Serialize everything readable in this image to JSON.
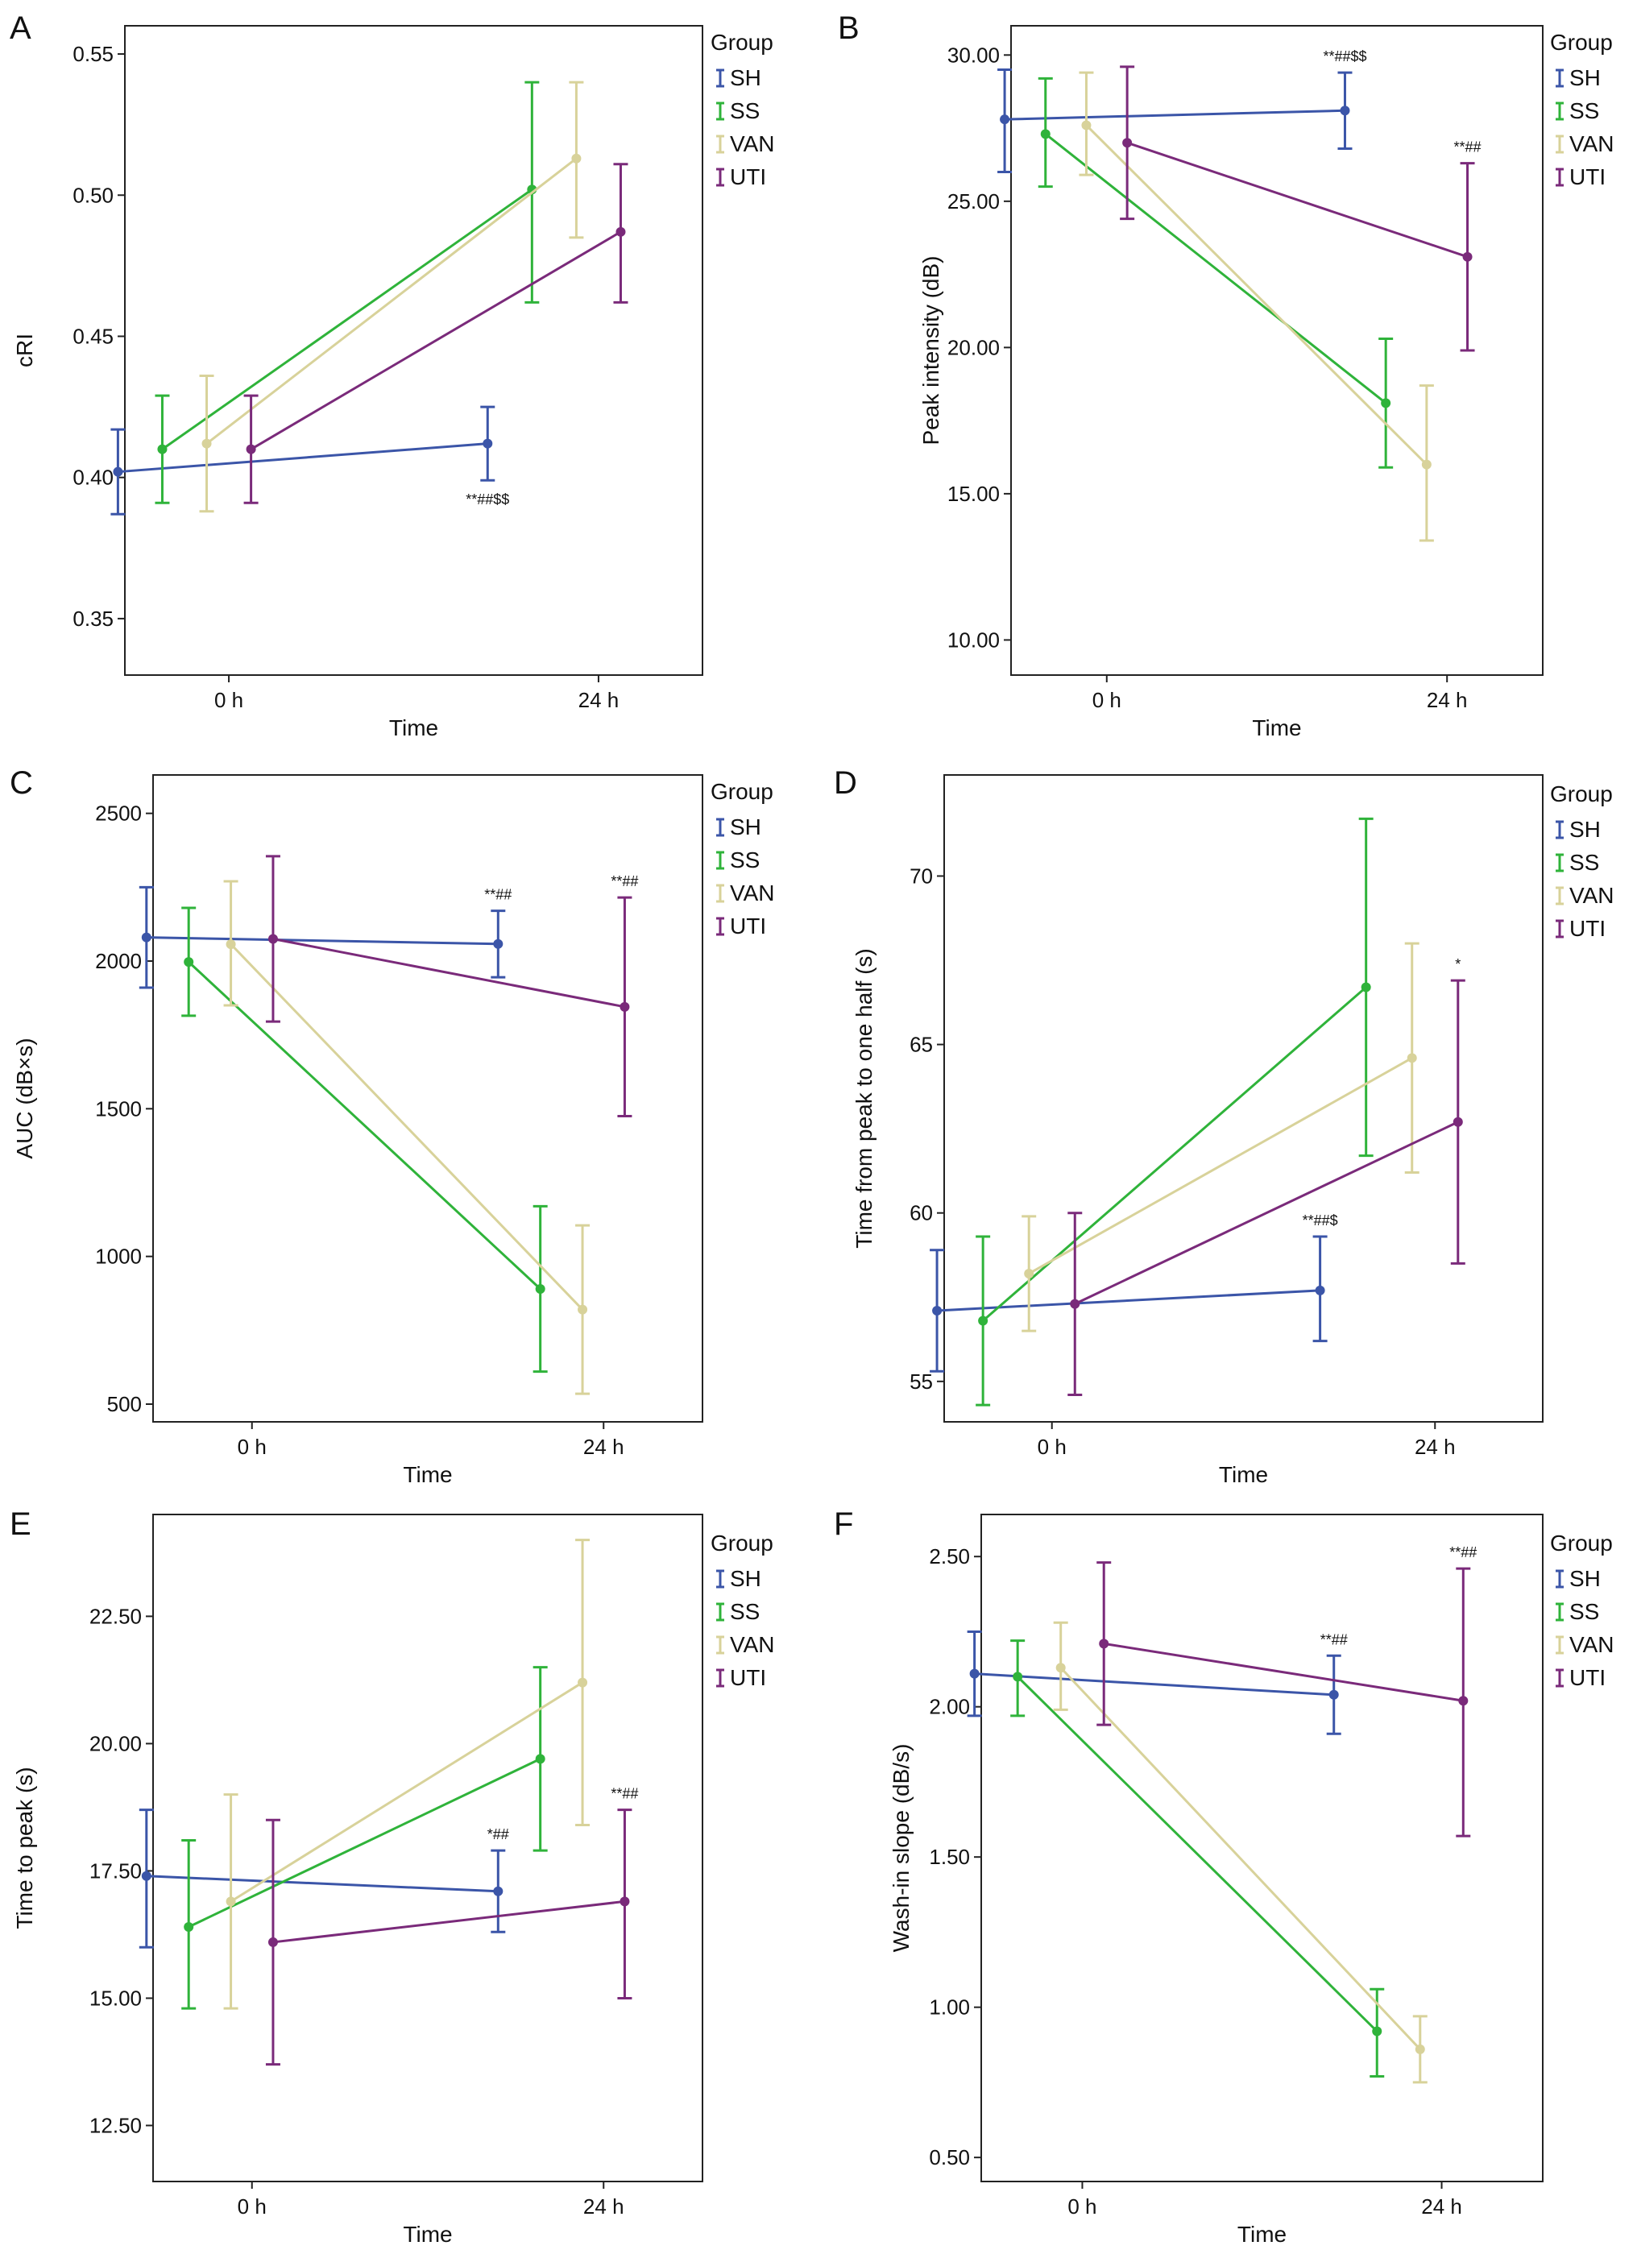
{
  "legend": {
    "title": "Group",
    "entries": [
      {
        "name": "SH",
        "color": "#3b55a8"
      },
      {
        "name": "SS",
        "color": "#2fb33a"
      },
      {
        "name": "VAN",
        "color": "#d8d29a"
      },
      {
        "name": "UTI",
        "color": "#7a2a7a"
      }
    ]
  },
  "chart_data": [
    {
      "id": "A",
      "letter": "A",
      "type": "line",
      "title": "",
      "xlabel": "Time",
      "ylabel": "cRI",
      "categories": [
        "0 h",
        "24 h"
      ],
      "ylim": [
        0.33,
        0.56
      ],
      "yticks": [
        0.35,
        0.4,
        0.45,
        0.5,
        0.55
      ],
      "yticklabels": [
        "0.35",
        "0.40",
        "0.45",
        "0.50",
        "0.55"
      ],
      "series": [
        {
          "name": "SH",
          "values": [
            0.402,
            0.412
          ],
          "lower": [
            0.387,
            0.399
          ],
          "upper": [
            0.417,
            0.425
          ]
        },
        {
          "name": "SS",
          "values": [
            0.41,
            0.502
          ],
          "lower": [
            0.391,
            0.462
          ],
          "upper": [
            0.429,
            0.54
          ]
        },
        {
          "name": "VAN",
          "values": [
            0.412,
            0.513
          ],
          "lower": [
            0.388,
            0.485
          ],
          "upper": [
            0.436,
            0.54
          ]
        },
        {
          "name": "UTI",
          "values": [
            0.41,
            0.487
          ],
          "lower": [
            0.391,
            0.462
          ],
          "upper": [
            0.429,
            0.511
          ]
        }
      ],
      "annotations": [
        {
          "series": "SH",
          "text": "**##$$",
          "position": "below"
        }
      ]
    },
    {
      "id": "B",
      "letter": "B",
      "type": "line",
      "title": "",
      "xlabel": "Time",
      "ylabel": "Peak intensity (dB)",
      "categories": [
        "0 h",
        "24 h"
      ],
      "ylim": [
        8.8,
        31.0
      ],
      "yticks": [
        10,
        15,
        20,
        25,
        30
      ],
      "yticklabels": [
        "10.00",
        "15.00",
        "20.00",
        "25.00",
        "30.00"
      ],
      "series": [
        {
          "name": "SH",
          "values": [
            27.8,
            28.1
          ],
          "lower": [
            26.0,
            26.8
          ],
          "upper": [
            29.5,
            29.4
          ]
        },
        {
          "name": "SS",
          "values": [
            27.3,
            18.1
          ],
          "lower": [
            25.5,
            15.9
          ],
          "upper": [
            29.2,
            20.3
          ]
        },
        {
          "name": "VAN",
          "values": [
            27.6,
            16.0
          ],
          "lower": [
            25.9,
            13.4
          ],
          "upper": [
            29.4,
            18.7
          ]
        },
        {
          "name": "UTI",
          "values": [
            27.0,
            23.1
          ],
          "lower": [
            24.4,
            19.9
          ],
          "upper": [
            29.6,
            26.3
          ]
        }
      ],
      "annotations": [
        {
          "series": "SH",
          "text": "**##$$",
          "position": "above"
        },
        {
          "series": "UTI",
          "text": "**##",
          "position": "above"
        }
      ]
    },
    {
      "id": "C",
      "letter": "C",
      "type": "line",
      "title": "",
      "xlabel": "Time",
      "ylabel": "AUC (dB×s)",
      "categories": [
        "0 h",
        "24 h"
      ],
      "ylim": [
        440,
        2630
      ],
      "yticks": [
        500,
        1000,
        1500,
        2000,
        2500
      ],
      "yticklabels": [
        "500",
        "1000",
        "1500",
        "2000",
        "2500"
      ],
      "series": [
        {
          "name": "SH",
          "values": [
            2080,
            2058
          ],
          "lower": [
            1910,
            1945
          ],
          "upper": [
            2250,
            2170
          ]
        },
        {
          "name": "SS",
          "values": [
            1997,
            890
          ],
          "lower": [
            1815,
            610
          ],
          "upper": [
            2180,
            1170
          ]
        },
        {
          "name": "VAN",
          "values": [
            2057,
            820
          ],
          "lower": [
            1850,
            535
          ],
          "upper": [
            2270,
            1105
          ]
        },
        {
          "name": "UTI",
          "values": [
            2075,
            1845
          ],
          "lower": [
            1795,
            1475
          ],
          "upper": [
            2355,
            2215
          ]
        }
      ],
      "annotations": [
        {
          "series": "SH",
          "text": "**##",
          "position": "above"
        },
        {
          "series": "UTI",
          "text": "**##",
          "position": "above"
        }
      ]
    },
    {
      "id": "D",
      "letter": "D",
      "type": "line",
      "title": "",
      "xlabel": "Time",
      "ylabel": "Time from peak to one half (s)",
      "categories": [
        "0 h",
        "24 h"
      ],
      "ylim": [
        53.8,
        73.0
      ],
      "yticks": [
        55,
        60,
        65,
        70
      ],
      "yticklabels": [
        "55",
        "60",
        "65",
        "70"
      ],
      "series": [
        {
          "name": "SH",
          "values": [
            57.1,
            57.7
          ],
          "lower": [
            55.3,
            56.2
          ],
          "upper": [
            58.9,
            59.3
          ]
        },
        {
          "name": "SS",
          "values": [
            56.8,
            66.7
          ],
          "lower": [
            54.3,
            61.7
          ],
          "upper": [
            59.3,
            71.7
          ]
        },
        {
          "name": "VAN",
          "values": [
            58.2,
            64.6
          ],
          "lower": [
            56.5,
            61.2
          ],
          "upper": [
            59.9,
            68.0
          ]
        },
        {
          "name": "UTI",
          "values": [
            57.3,
            62.7
          ],
          "lower": [
            54.6,
            58.5
          ],
          "upper": [
            60.0,
            66.9
          ]
        }
      ],
      "annotations": [
        {
          "series": "SH",
          "text": "**##$",
          "position": "above"
        },
        {
          "series": "UTI",
          "text": "*",
          "position": "above"
        }
      ]
    },
    {
      "id": "E",
      "letter": "E",
      "type": "line",
      "title": "",
      "xlabel": "Time",
      "ylabel": "Time to peak (s)",
      "categories": [
        "0 h",
        "24 h"
      ],
      "ylim": [
        11.4,
        24.5
      ],
      "yticks": [
        12.5,
        15,
        17.5,
        20,
        22.5
      ],
      "yticklabels": [
        "12.50",
        "15.00",
        "17.50",
        "20.00",
        "22.50"
      ],
      "series": [
        {
          "name": "SH",
          "values": [
            17.4,
            17.1
          ],
          "lower": [
            16.0,
            16.3
          ],
          "upper": [
            18.7,
            17.9
          ]
        },
        {
          "name": "SS",
          "values": [
            16.4,
            19.7
          ],
          "lower": [
            14.8,
            17.9
          ],
          "upper": [
            18.1,
            21.5
          ]
        },
        {
          "name": "VAN",
          "values": [
            16.9,
            21.2
          ],
          "lower": [
            14.8,
            18.4
          ],
          "upper": [
            19.0,
            24.0
          ]
        },
        {
          "name": "UTI",
          "values": [
            16.1,
            16.9
          ],
          "lower": [
            13.7,
            15.0
          ],
          "upper": [
            18.5,
            18.7
          ]
        }
      ],
      "annotations": [
        {
          "series": "SH",
          "text": "*##",
          "position": "above"
        },
        {
          "series": "UTI",
          "text": "**##",
          "position": "above"
        }
      ]
    },
    {
      "id": "F",
      "letter": "F",
      "type": "line",
      "title": "",
      "xlabel": "Time",
      "ylabel": "Wash-in slope (dB/s)",
      "categories": [
        "0 h",
        "24 h"
      ],
      "ylim": [
        0.42,
        2.64
      ],
      "yticks": [
        0.5,
        1.0,
        1.5,
        2.0,
        2.5
      ],
      "yticklabels": [
        "0.50",
        "1.00",
        "1.50",
        "2.00",
        "2.50"
      ],
      "series": [
        {
          "name": "SH",
          "values": [
            2.11,
            2.04
          ],
          "lower": [
            1.97,
            1.91
          ],
          "upper": [
            2.25,
            2.17
          ]
        },
        {
          "name": "SS",
          "values": [
            2.1,
            0.92
          ],
          "lower": [
            1.97,
            0.77
          ],
          "upper": [
            2.22,
            1.06
          ]
        },
        {
          "name": "VAN",
          "values": [
            2.13,
            0.86
          ],
          "lower": [
            1.99,
            0.75
          ],
          "upper": [
            2.28,
            0.97
          ]
        },
        {
          "name": "UTI",
          "values": [
            2.21,
            2.02
          ],
          "lower": [
            1.94,
            1.57
          ],
          "upper": [
            2.48,
            2.46
          ]
        }
      ],
      "annotations": [
        {
          "series": "SH",
          "text": "**##",
          "position": "above"
        },
        {
          "series": "UTI",
          "text": "**##",
          "position": "above"
        }
      ]
    }
  ]
}
